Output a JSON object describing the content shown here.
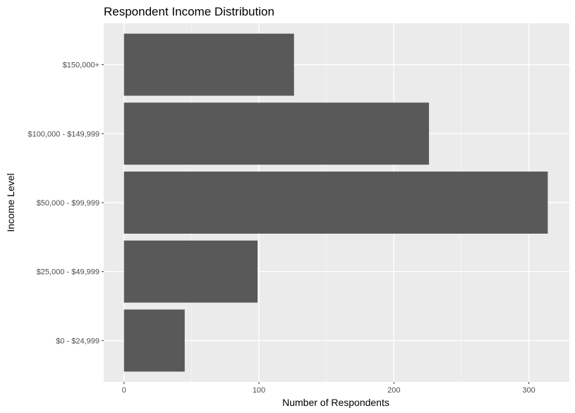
{
  "chart_data": {
    "type": "bar",
    "orientation": "horizontal",
    "title": "Respondent Income Distribution",
    "xlabel": "Number of Respondents",
    "ylabel": "Income Level",
    "categories": [
      "$0 - $24,999",
      "$25,000 - $49,999",
      "$50,000 - $99,999",
      "$100,000 - $149,999",
      "$150,000+"
    ],
    "values": [
      45,
      99,
      314,
      226,
      126
    ],
    "xlim": [
      -15,
      330
    ],
    "xticks": [
      0,
      100,
      200,
      300
    ],
    "xtick_labels": [
      "0",
      "100",
      "200",
      "300"
    ],
    "grid": true,
    "legend": "none",
    "colors": {
      "bar": "#595959",
      "panel": "#ebebeb",
      "grid_major": "#ffffff",
      "grid_minor": "#f5f5f5",
      "tick_label": "#4d4d4d",
      "tick_mark": "#333333"
    }
  }
}
